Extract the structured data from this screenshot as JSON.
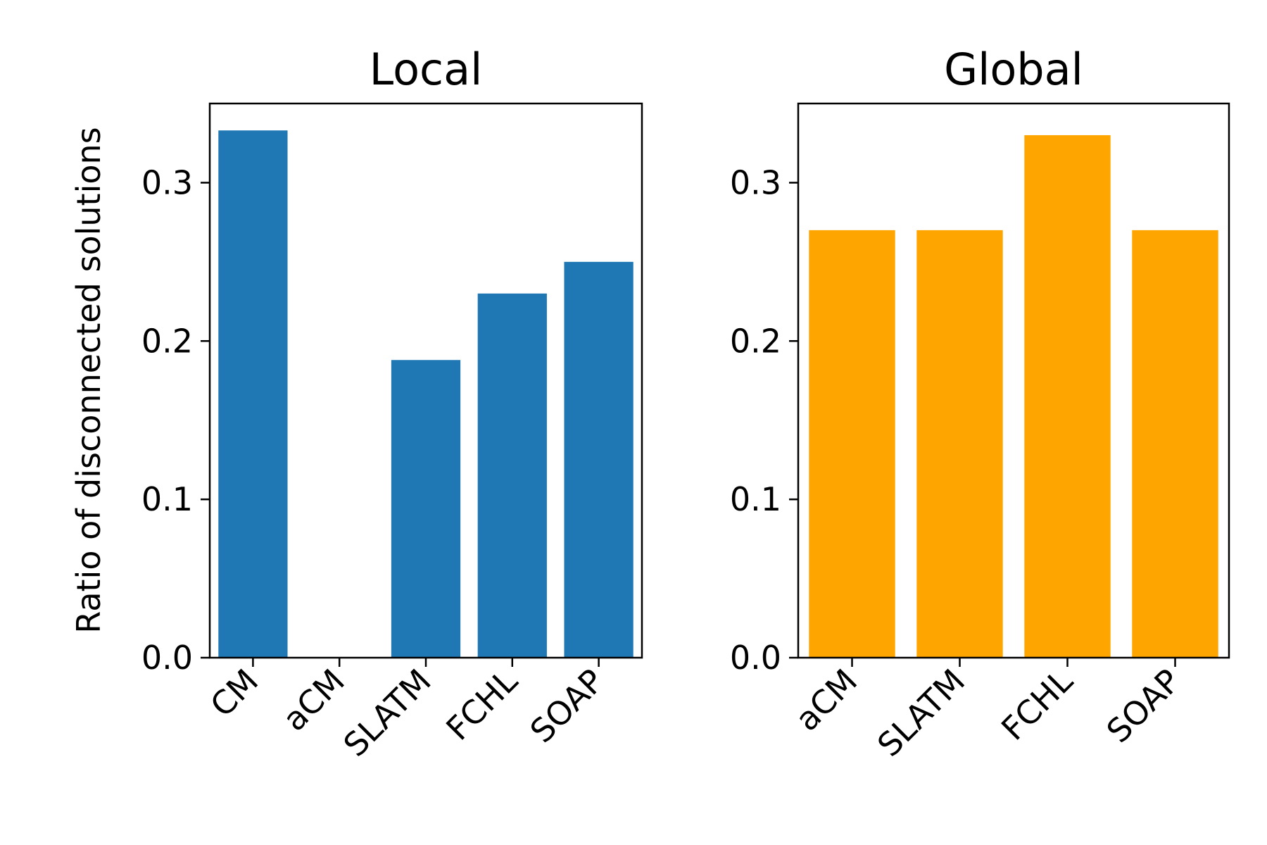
{
  "figure": {
    "ylabel": "Ratio of disconnected solutions"
  },
  "chart_data": [
    {
      "type": "bar",
      "title": "Local",
      "categories": [
        "CM",
        "aCM",
        "SLATM",
        "FCHL",
        "SOAP"
      ],
      "values": [
        0.333,
        0.0,
        0.188,
        0.23,
        0.25
      ],
      "color": "#1f77b4",
      "ylabel": "Ratio of disconnected solutions",
      "xlabel": "",
      "ylim": [
        0,
        0.35
      ],
      "yticks": [
        0.0,
        0.1,
        0.2,
        0.3
      ],
      "ytick_labels": [
        "0.0",
        "0.1",
        "0.2",
        "0.3"
      ],
      "grid": false
    },
    {
      "type": "bar",
      "title": "Global",
      "categories": [
        "aCM",
        "SLATM",
        "FCHL",
        "SOAP"
      ],
      "values": [
        0.27,
        0.27,
        0.33,
        0.27
      ],
      "color": "#ffa500",
      "ylabel": "",
      "xlabel": "",
      "ylim": [
        0,
        0.35
      ],
      "yticks": [
        0.0,
        0.1,
        0.2,
        0.3
      ],
      "ytick_labels": [
        "0.0",
        "0.1",
        "0.2",
        "0.3"
      ],
      "grid": false
    }
  ]
}
